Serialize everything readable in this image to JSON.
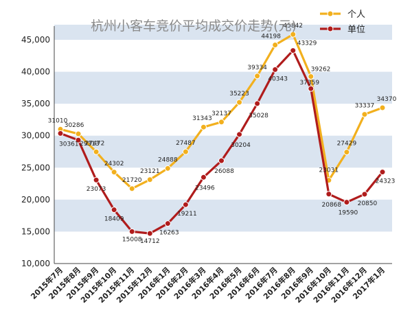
{
  "chart_data": {
    "type": "line",
    "title": "杭州小客车竞价平均成交价走势(元)",
    "xlabel": "",
    "ylabel": "",
    "ylim": [
      10000,
      45000
    ],
    "yticks": [
      "10,000",
      "15,000",
      "20,000",
      "25,000",
      "30,000",
      "35,000",
      "40,000",
      "45,000"
    ],
    "grid": "alternating horizontal bands",
    "legend_position": "top-right",
    "categories": [
      "2015年7月",
      "2015年8月",
      "2015年9月",
      "2015年10月",
      "2015年11月",
      "2015年12月",
      "2016年1月",
      "2016年2月",
      "2016年3月",
      "2016年4月",
      "2016年5月",
      "2016年6月",
      "2016年7月",
      "2016年8月",
      "2016年9月",
      "2016年10月",
      "2016年11月",
      "2016年12月",
      "2017年1月"
    ],
    "series": [
      {
        "name": "个人",
        "color": "#f2b01e",
        "values": [
          31010,
          30286,
          27472,
          24302,
          21720,
          23121,
          24888,
          27487,
          31343,
          32137,
          35223,
          39334,
          44198,
          45842,
          39262,
          23031,
          27429,
          33337,
          34370
        ]
      },
      {
        "name": "单位",
        "color": "#b01c1c",
        "values": [
          30361,
          29313,
          23073,
          18409,
          15008,
          14712,
          16263,
          19211,
          23496,
          26088,
          30204,
          35028,
          40343,
          43329,
          37359,
          20868,
          19590,
          20850,
          24323
        ]
      }
    ]
  }
}
